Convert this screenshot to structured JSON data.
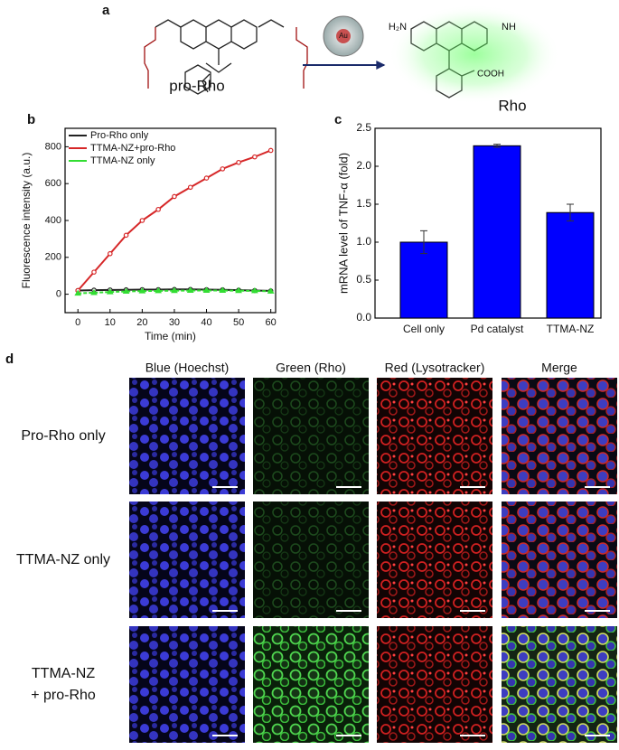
{
  "panel_labels": [
    "a",
    "b",
    "c",
    "d"
  ],
  "scheme": {
    "reactant_label": "pro-Rho",
    "product_label": "Rho",
    "catalyst_label": "Au",
    "amine_label": "H₂N",
    "imine_label": "NH",
    "acid_label": "COOH"
  },
  "chart_data": [
    {
      "type": "line",
      "x_label": "Time (min)",
      "y_label": "Fluorescence intensity (a.u.)",
      "x": [
        0,
        5,
        10,
        15,
        20,
        25,
        30,
        35,
        40,
        45,
        50,
        55,
        60
      ],
      "series": [
        {
          "name": "Pro-Rho only",
          "color": "#222222",
          "marker": "circle",
          "values": [
            20,
            22,
            23,
            24,
            25,
            25,
            26,
            26,
            25,
            24,
            22,
            20,
            18
          ]
        },
        {
          "name": "TTMA-NZ+pro-Rho",
          "color": "#d62728",
          "marker": "circle",
          "values": [
            20,
            120,
            220,
            320,
            400,
            460,
            530,
            580,
            630,
            680,
            715,
            745,
            780
          ]
        },
        {
          "name": "TTMA-NZ only",
          "color": "#33dd33",
          "marker": "triangle",
          "values": [
            5,
            8,
            12,
            15,
            17,
            18,
            19,
            20,
            20,
            20,
            19,
            18,
            16
          ]
        }
      ],
      "xlim": [
        -4,
        61.5
      ],
      "xticks": [
        0,
        10,
        20,
        30,
        40,
        50,
        60
      ],
      "ylim": [
        -100,
        900
      ],
      "yticks": [
        0,
        200,
        400,
        600,
        800
      ],
      "legend": "upper-left"
    },
    {
      "type": "bar",
      "y_label": "mRNA level of TNF-α (fold)",
      "categories": [
        "Cell only",
        "Pd catalyst",
        "TTMA-NZ"
      ],
      "values": [
        1.0,
        2.27,
        1.39
      ],
      "errors": [
        0.15,
        0.02,
        0.11
      ],
      "color": "#0000ff",
      "ylim": [
        0,
        2.5
      ],
      "yticks": [
        {
          "value": 0,
          "label": "0.0"
        },
        {
          "value": 0.5,
          "label": "0.5"
        },
        {
          "value": 1,
          "label": "1.0"
        },
        {
          "value": 1.5,
          "label": "1.5"
        },
        {
          "value": 2,
          "label": "2.0"
        },
        {
          "value": 2.5,
          "label": "2.5"
        }
      ]
    }
  ],
  "microscopy": {
    "columns": [
      "Blue (Hoechst)",
      "Green (Rho)",
      "Red (Lysotracker)",
      "Merge"
    ],
    "rows": [
      [
        "Pro-Rho only"
      ],
      [
        "TTMA-NZ only"
      ],
      [
        "TTMA-NZ",
        "+ pro-Rho"
      ]
    ]
  }
}
